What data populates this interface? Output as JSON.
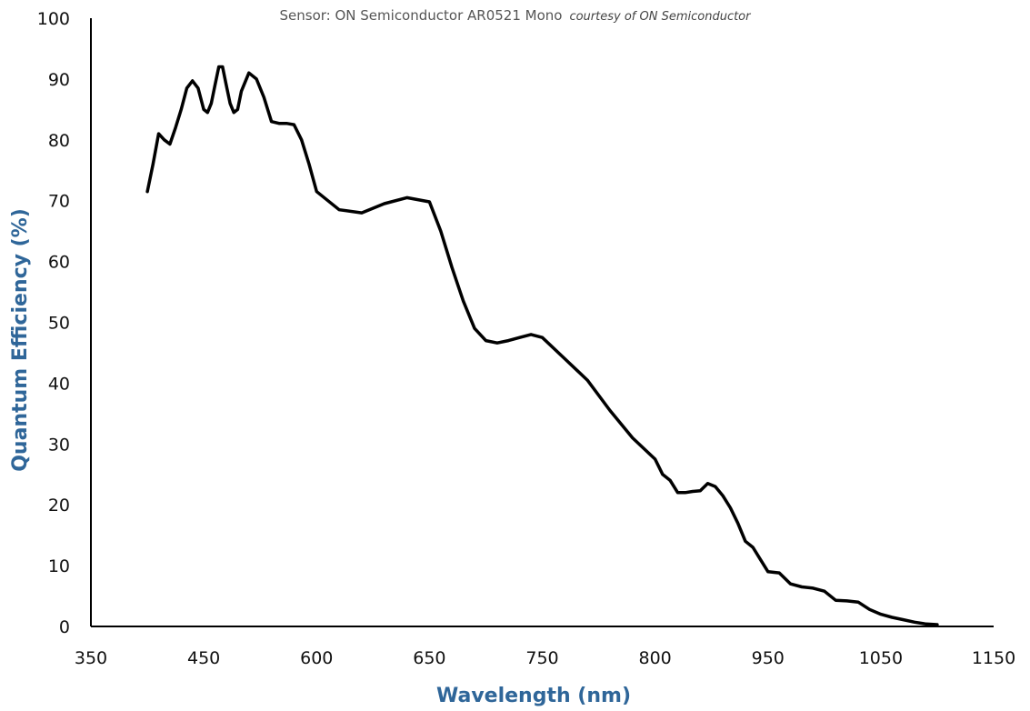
{
  "chart_data": {
    "type": "line",
    "title": "Sensor: ON Semiconductor AR0521 Mono",
    "subtitle": "courtesy of ON Semiconductor",
    "xlabel": "Wavelength (nm)",
    "ylabel": "Quantum Efficiency (%)",
    "x_tick_labels": [
      "350",
      "450",
      "600",
      "650",
      "750",
      "800",
      "950",
      "1050",
      "1150"
    ],
    "y_tick_labels": [
      "0",
      "10",
      "20",
      "30",
      "40",
      "50",
      "60",
      "70",
      "80",
      "90",
      "100"
    ],
    "ylim": [
      0,
      100
    ],
    "grid": false,
    "legend": "none",
    "line_color": "#000000",
    "axis_title_color": "#2f6699",
    "series": [
      {
        "x": [
          400,
          405,
          410,
          415,
          420,
          425,
          430,
          435,
          440,
          445,
          450,
          455,
          460,
          465,
          470,
          475,
          480,
          485,
          490,
          495,
          500,
          510,
          520,
          530,
          540,
          550,
          560,
          570,
          580,
          590,
          600,
          610,
          620,
          630,
          640,
          650,
          660,
          670,
          680,
          690,
          700,
          710,
          720,
          730,
          740,
          750,
          760,
          770,
          780,
          790,
          800,
          810,
          820,
          830,
          840,
          850,
          860,
          870,
          880,
          890,
          900,
          910,
          920,
          930,
          940,
          950,
          960,
          970,
          980,
          990,
          1000,
          1010,
          1020,
          1030,
          1040,
          1050,
          1060,
          1070,
          1080,
          1090,
          1100
        ],
        "y": [
          71.5,
          76,
          81,
          80,
          79.3,
          82,
          85,
          88.5,
          89.7,
          88.5,
          85,
          84.5,
          86,
          89,
          92,
          92,
          89,
          86,
          84.5,
          85,
          88,
          91,
          90,
          87,
          83,
          82.7,
          82.7,
          82.5,
          80,
          76,
          71.5,
          68.5,
          68,
          69.5,
          70.5,
          69.8,
          65,
          59,
          53.5,
          49,
          47,
          46.6,
          47,
          47.5,
          48,
          47.5,
          44,
          40.5,
          35.5,
          31,
          27.5,
          25,
          24,
          22,
          22,
          22.2,
          22.3,
          23.5,
          23,
          21.5,
          19.5,
          17,
          14,
          13,
          11,
          9,
          8.8,
          7,
          6.5,
          6.3,
          5.8,
          4.3,
          4.2,
          4,
          2.8,
          2,
          1.5,
          1.1,
          0.7,
          0.4,
          0.3
        ]
      }
    ]
  }
}
